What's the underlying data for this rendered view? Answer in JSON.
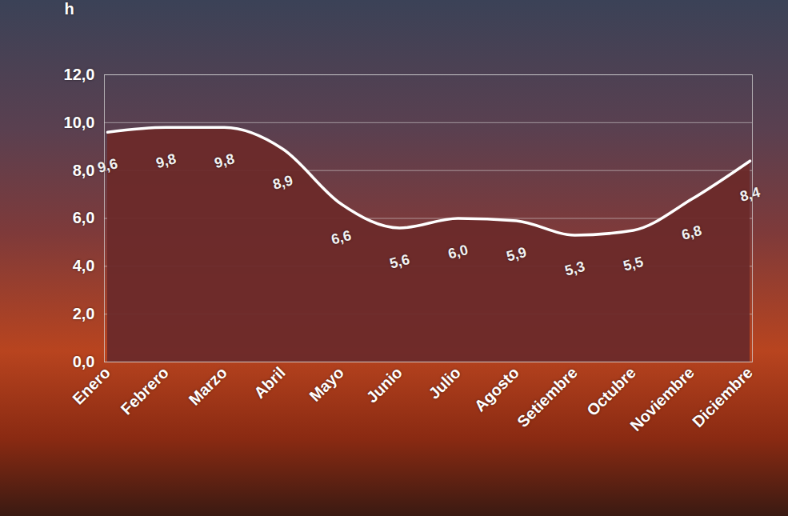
{
  "chart_data": {
    "type": "area",
    "y_label": "h",
    "categories": [
      "Enero",
      "Febrero",
      "Marzo",
      "Abril",
      "Mayo",
      "Junio",
      "Julio",
      "Agosto",
      "Setiembre",
      "Octubre",
      "Noviembre",
      "Diciembre"
    ],
    "values": [
      9.6,
      9.8,
      9.8,
      8.9,
      6.6,
      5.6,
      6.0,
      5.9,
      5.3,
      5.5,
      6.8,
      8.4
    ],
    "value_labels": [
      "9,6",
      "9,8",
      "9,8",
      "8,9",
      "6,6",
      "5,6",
      "6,0",
      "5,9",
      "5,3",
      "5,5",
      "6,8",
      "8,4"
    ],
    "color": "#6b2a2a",
    "ylim": [
      0,
      12
    ],
    "yticks": [
      {
        "value": 0,
        "label": "0,0"
      },
      {
        "value": 2,
        "label": "2,0"
      },
      {
        "value": 4,
        "label": "4,0"
      },
      {
        "value": 6,
        "label": "6,0"
      },
      {
        "value": 8,
        "label": "8,0"
      },
      {
        "value": 10,
        "label": "10,0"
      },
      {
        "value": 12,
        "label": "12,0"
      }
    ],
    "grid": true,
    "data_labels": true
  }
}
